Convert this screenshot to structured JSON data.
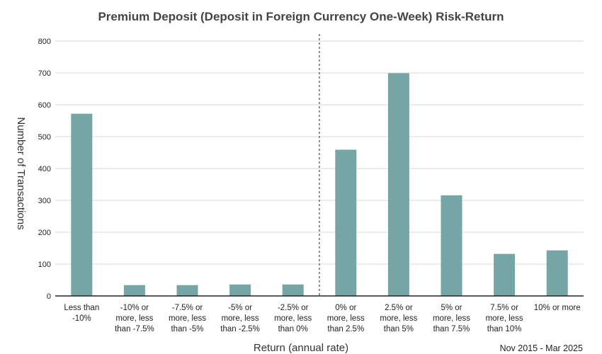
{
  "chart_data": {
    "type": "bar",
    "title": "Premium Deposit (Deposit in Foreign Currency One-Week) Risk-Return",
    "xlabel": "Return (annual rate)",
    "ylabel": "Number of Transactions",
    "period": "Nov 2015 - Mar 2025",
    "ylim": [
      0,
      800
    ],
    "yticks": [
      0,
      100,
      200,
      300,
      400,
      500,
      600,
      700,
      800
    ],
    "grid": true,
    "legend": "none",
    "bar_color": "#76a5a5",
    "divider_after_category_index": 4,
    "categories": [
      [
        "Less than",
        "-10%"
      ],
      [
        "-10% or",
        "more, less",
        "than -7.5%"
      ],
      [
        "-7.5% or",
        "more, less",
        "than -5%"
      ],
      [
        "-5% or",
        "more, less",
        "than -2.5%"
      ],
      [
        "-2.5% or",
        "more, less",
        "than 0%"
      ],
      [
        "0% or",
        "more, less",
        "than 2.5%"
      ],
      [
        "2.5% or",
        "more, less",
        "than 5%"
      ],
      [
        "5% or",
        "more, less",
        "than 7.5%"
      ],
      [
        "7.5% or",
        "more, less",
        "than 10%"
      ],
      [
        "10% or more"
      ]
    ],
    "values": [
      572,
      34,
      34,
      36,
      36,
      459,
      699,
      316,
      132,
      143
    ]
  }
}
